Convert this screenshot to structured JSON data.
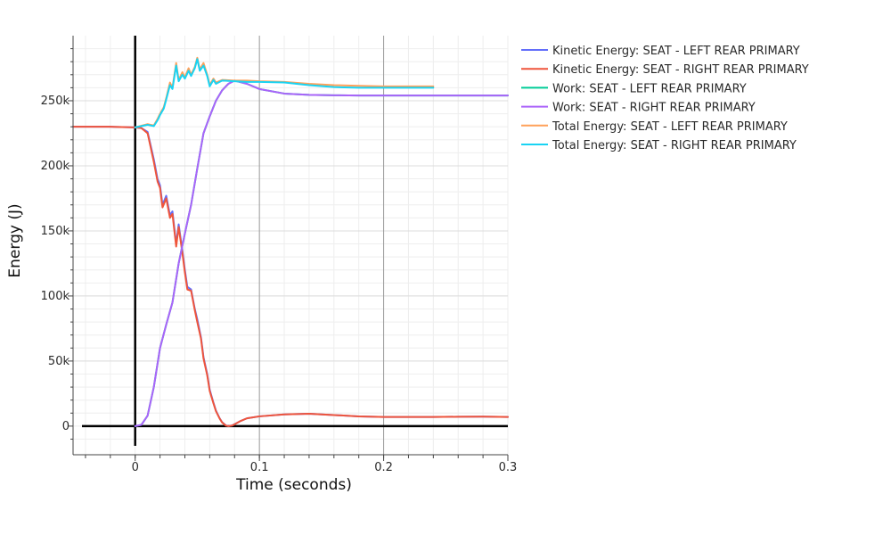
{
  "chart_data": {
    "type": "line",
    "title": "",
    "xlabel": "Time (seconds)",
    "ylabel": "Energy (J)",
    "xlim": [
      -0.05,
      0.3
    ],
    "ylim": [
      -22000,
      300000
    ],
    "x_ticks": [
      {
        "value": 0,
        "label": "0"
      },
      {
        "value": 0.1,
        "label": "0.1"
      },
      {
        "value": 0.2,
        "label": "0.2"
      },
      {
        "value": 0.3,
        "label": "0.3"
      }
    ],
    "y_ticks": [
      {
        "value": 0,
        "label": "0"
      },
      {
        "value": 50000,
        "label": "50k"
      },
      {
        "value": 100000,
        "label": "100k"
      },
      {
        "value": 150000,
        "label": "150k"
      },
      {
        "value": 200000,
        "label": "200k"
      },
      {
        "value": 250000,
        "label": "250k"
      }
    ],
    "grid": true,
    "legend_position": "top-right outside",
    "series": [
      {
        "name": "Kinetic Energy: SEAT - LEFT REAR PRIMARY",
        "color": "#636efa",
        "x": [
          -0.05,
          -0.02,
          0.0,
          0.005,
          0.01,
          0.015,
          0.018,
          0.02,
          0.022,
          0.025,
          0.028,
          0.03,
          0.033,
          0.035,
          0.038,
          0.04,
          0.042,
          0.045,
          0.048,
          0.05,
          0.053,
          0.055,
          0.058,
          0.06,
          0.063,
          0.065,
          0.068,
          0.07,
          0.073,
          0.075,
          0.078,
          0.08,
          0.085,
          0.09,
          0.1,
          0.12,
          0.14,
          0.16,
          0.18,
          0.2,
          0.22,
          0.24,
          0.26,
          0.28,
          0.3
        ],
        "y": [
          230000,
          230000,
          229500,
          229000,
          226000,
          205000,
          190000,
          185000,
          170000,
          177000,
          162000,
          165000,
          140000,
          155000,
          135000,
          120000,
          107000,
          105000,
          90000,
          82000,
          68000,
          53000,
          40000,
          28000,
          18000,
          12000,
          6000,
          3000,
          500,
          0,
          500,
          1500,
          4000,
          6000,
          7500,
          9000,
          9500,
          8500,
          7500,
          7000,
          7000,
          7000,
          7200,
          7300,
          7000
        ]
      },
      {
        "name": "Kinetic Energy: SEAT - RIGHT REAR PRIMARY",
        "color": "#ef553b",
        "x": [
          -0.05,
          -0.02,
          0.0,
          0.005,
          0.01,
          0.015,
          0.018,
          0.02,
          0.022,
          0.025,
          0.028,
          0.03,
          0.033,
          0.035,
          0.038,
          0.04,
          0.042,
          0.045,
          0.048,
          0.05,
          0.053,
          0.055,
          0.058,
          0.06,
          0.063,
          0.065,
          0.068,
          0.07,
          0.073,
          0.075,
          0.078,
          0.08,
          0.085,
          0.09,
          0.1,
          0.12,
          0.14,
          0.16,
          0.18,
          0.2,
          0.22,
          0.24,
          0.26,
          0.28,
          0.3
        ],
        "y": [
          230000,
          230000,
          229500,
          229000,
          225000,
          203000,
          188000,
          183000,
          168000,
          175000,
          160000,
          163000,
          138000,
          153000,
          133000,
          118000,
          105000,
          104000,
          89000,
          80000,
          67000,
          52000,
          39000,
          27000,
          17500,
          11500,
          5800,
          2800,
          400,
          0,
          400,
          1400,
          4000,
          6000,
          7500,
          9000,
          9500,
          8500,
          7500,
          7000,
          7000,
          7000,
          7200,
          7300,
          7000
        ]
      },
      {
        "name": "Work: SEAT - LEFT REAR PRIMARY",
        "color": "#00cc96",
        "x": [
          0.0,
          0.005,
          0.01,
          0.015,
          0.02,
          0.025,
          0.03,
          0.035,
          0.04,
          0.045,
          0.05,
          0.055,
          0.06,
          0.065,
          0.07,
          0.075,
          0.08,
          0.09,
          0.1,
          0.12,
          0.14,
          0.16,
          0.18,
          0.2,
          0.22,
          0.24,
          0.26,
          0.28,
          0.3
        ],
        "y": [
          0,
          1000,
          8000,
          30000,
          60000,
          78000,
          95000,
          125000,
          148000,
          170000,
          198000,
          225000,
          238000,
          250000,
          258000,
          263000,
          265500,
          263000,
          259000,
          255500,
          254500,
          254200,
          254000,
          254000,
          254000,
          254000,
          254000,
          254000,
          254000
        ]
      },
      {
        "name": "Work: SEAT - RIGHT REAR PRIMARY",
        "color": "#ab63fa",
        "x": [
          0.0,
          0.005,
          0.01,
          0.015,
          0.02,
          0.025,
          0.03,
          0.035,
          0.04,
          0.045,
          0.05,
          0.055,
          0.06,
          0.065,
          0.07,
          0.075,
          0.08,
          0.09,
          0.1,
          0.12,
          0.14,
          0.16,
          0.18,
          0.2,
          0.22,
          0.24,
          0.26,
          0.28,
          0.3
        ],
        "y": [
          0,
          1000,
          8000,
          30000,
          60000,
          78000,
          95000,
          125000,
          148000,
          170000,
          198000,
          225000,
          238000,
          250000,
          258000,
          263000,
          265500,
          263000,
          259000,
          255500,
          254500,
          254200,
          254000,
          254000,
          254000,
          254000,
          254000,
          254000,
          254000
        ]
      },
      {
        "name": "Total Energy: SEAT - LEFT REAR PRIMARY",
        "color": "#ffa15a",
        "x": [
          0.0,
          0.01,
          0.015,
          0.018,
          0.02,
          0.023,
          0.025,
          0.028,
          0.03,
          0.033,
          0.035,
          0.038,
          0.04,
          0.043,
          0.045,
          0.048,
          0.05,
          0.052,
          0.055,
          0.058,
          0.06,
          0.063,
          0.065,
          0.07,
          0.08,
          0.09,
          0.1,
          0.12,
          0.14,
          0.16,
          0.18,
          0.2,
          0.22,
          0.24
        ],
        "y": [
          229500,
          232000,
          231000,
          236000,
          240000,
          245000,
          252000,
          264000,
          260000,
          279000,
          266000,
          272000,
          268000,
          275000,
          270000,
          276000,
          283000,
          274000,
          279000,
          270000,
          262000,
          267000,
          264000,
          266000,
          265500,
          265500,
          265000,
          264500,
          263000,
          262000,
          261500,
          261000,
          261000,
          261000
        ]
      },
      {
        "name": "Total Energy: SEAT - RIGHT REAR PRIMARY",
        "color": "#19d3f3",
        "x": [
          0.0,
          0.01,
          0.015,
          0.018,
          0.02,
          0.023,
          0.025,
          0.028,
          0.03,
          0.033,
          0.035,
          0.038,
          0.04,
          0.043,
          0.045,
          0.048,
          0.05,
          0.052,
          0.055,
          0.058,
          0.06,
          0.063,
          0.065,
          0.07,
          0.08,
          0.09,
          0.1,
          0.12,
          0.14,
          0.16,
          0.18,
          0.2,
          0.22,
          0.24
        ],
        "y": [
          229500,
          231500,
          230500,
          235000,
          239000,
          244000,
          251000,
          262000,
          259000,
          277000,
          265000,
          270000,
          267000,
          273000,
          269000,
          275000,
          282000,
          273000,
          277000,
          269000,
          261000,
          266000,
          263000,
          265500,
          265000,
          264500,
          264500,
          264000,
          262000,
          260500,
          260000,
          260000,
          260000,
          260000
        ]
      }
    ]
  }
}
